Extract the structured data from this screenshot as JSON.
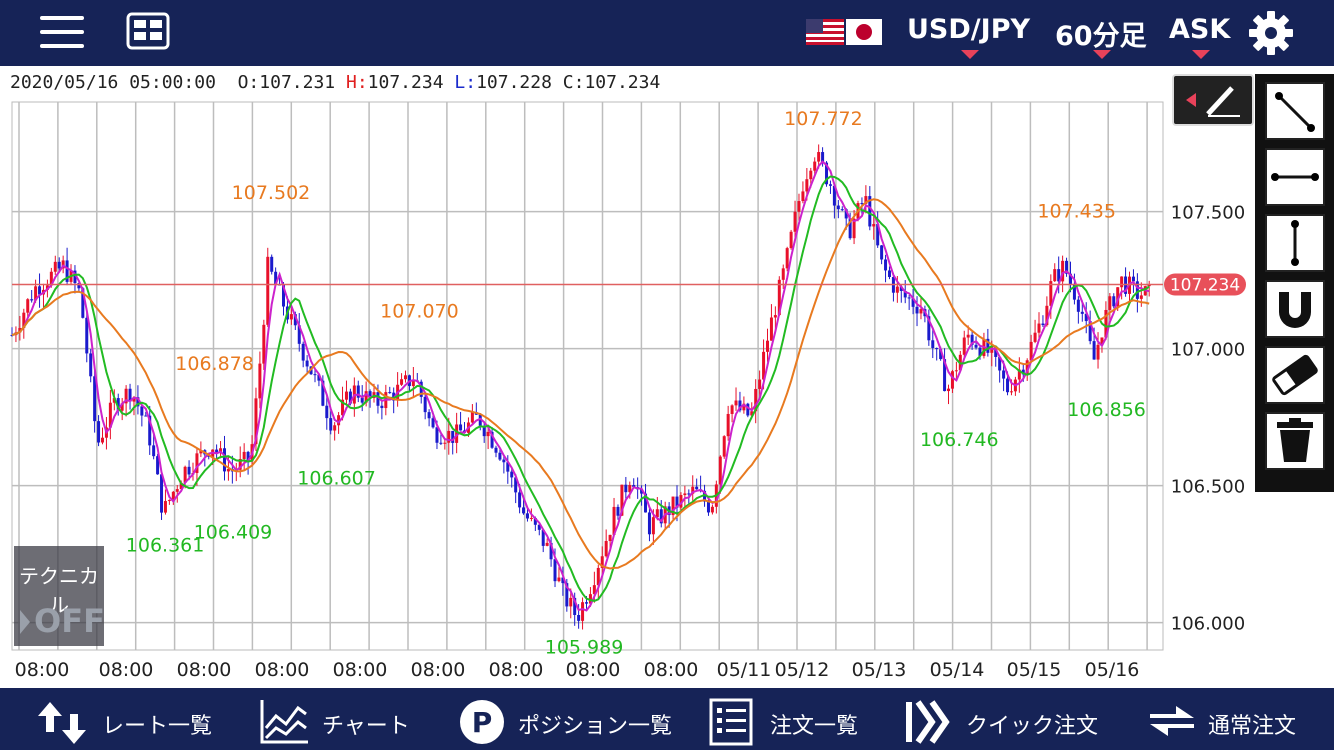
{
  "header": {
    "pair": "USD/JPY",
    "timeframe": "60分足",
    "side": "ASK",
    "flags": [
      "us-flag-icon",
      "jp-flag-icon"
    ]
  },
  "ohlc": {
    "datetime": "2020/05/16 05:00:00",
    "o_label": "O:",
    "o": "107.231",
    "h_label": "H:",
    "h": "107.234",
    "l_label": "L:",
    "l": "107.228",
    "c_label": "C:",
    "c": "107.234"
  },
  "technical": {
    "label": "テクニカル",
    "state": "OFF"
  },
  "chart_data": {
    "type": "candlestick",
    "ylim": [
      105.9,
      107.9
    ],
    "yticks": [
      "107.500",
      "107.000",
      "106.500",
      "106.000"
    ],
    "current_price": "107.234",
    "xticks": [
      "08:00",
      "08:00",
      "08:00",
      "08:00",
      "08:00",
      "08:00",
      "08:00",
      "08:00",
      "08:00",
      "05/11",
      "05/12",
      "05/13",
      "05/14",
      "05/15",
      "05/16"
    ],
    "annotations": [
      {
        "text": "107.502",
        "kind": "high",
        "value": 107.502,
        "at": 0.225
      },
      {
        "text": "106.878",
        "kind": "high",
        "value": 106.878,
        "at": 0.176
      },
      {
        "text": "107.070",
        "kind": "high",
        "value": 107.07,
        "at": 0.354
      },
      {
        "text": "107.772",
        "kind": "high",
        "value": 107.772,
        "at": 0.705
      },
      {
        "text": "107.435",
        "kind": "high",
        "value": 107.435,
        "at": 0.925
      },
      {
        "text": "106.361",
        "kind": "low",
        "value": 106.361,
        "at": 0.133
      },
      {
        "text": "106.409",
        "kind": "low",
        "value": 106.409,
        "at": 0.192
      },
      {
        "text": "106.607",
        "kind": "low",
        "value": 106.607,
        "at": 0.282
      },
      {
        "text": "105.989",
        "kind": "low",
        "value": 105.989,
        "at": 0.497
      },
      {
        "text": "106.746",
        "kind": "low",
        "value": 106.746,
        "at": 0.823
      },
      {
        "text": "106.856",
        "kind": "low",
        "value": 106.856,
        "at": 0.951
      }
    ],
    "path_keys": [
      [
        0,
        107.05
      ],
      [
        0.02,
        107.22
      ],
      [
        0.045,
        107.3
      ],
      [
        0.06,
        107.2
      ],
      [
        0.075,
        106.65
      ],
      [
        0.09,
        106.8
      ],
      [
        0.105,
        106.85
      ],
      [
        0.12,
        106.7
      ],
      [
        0.133,
        106.4
      ],
      [
        0.15,
        106.55
      ],
      [
        0.176,
        106.65
      ],
      [
        0.192,
        106.55
      ],
      [
        0.21,
        106.6
      ],
      [
        0.218,
        106.95
      ],
      [
        0.225,
        107.3
      ],
      [
        0.24,
        107.15
      ],
      [
        0.255,
        107.0
      ],
      [
        0.27,
        106.85
      ],
      [
        0.282,
        106.72
      ],
      [
        0.3,
        106.85
      ],
      [
        0.32,
        106.8
      ],
      [
        0.34,
        106.85
      ],
      [
        0.354,
        106.9
      ],
      [
        0.37,
        106.7
      ],
      [
        0.39,
        106.68
      ],
      [
        0.41,
        106.75
      ],
      [
        0.43,
        106.62
      ],
      [
        0.45,
        106.4
      ],
      [
        0.47,
        106.28
      ],
      [
        0.485,
        106.1
      ],
      [
        0.497,
        106.02
      ],
      [
        0.51,
        106.15
      ],
      [
        0.53,
        106.4
      ],
      [
        0.545,
        106.55
      ],
      [
        0.56,
        106.35
      ],
      [
        0.58,
        106.42
      ],
      [
        0.6,
        106.48
      ],
      [
        0.615,
        106.42
      ],
      [
        0.63,
        106.8
      ],
      [
        0.65,
        106.75
      ],
      [
        0.665,
        107.05
      ],
      [
        0.68,
        107.3
      ],
      [
        0.695,
        107.6
      ],
      [
        0.705,
        107.72
      ],
      [
        0.72,
        107.6
      ],
      [
        0.735,
        107.42
      ],
      [
        0.75,
        107.55
      ],
      [
        0.765,
        107.3
      ],
      [
        0.78,
        107.2
      ],
      [
        0.8,
        107.15
      ],
      [
        0.81,
        107.0
      ],
      [
        0.823,
        106.85
      ],
      [
        0.84,
        107.05
      ],
      [
        0.86,
        106.98
      ],
      [
        0.875,
        106.85
      ],
      [
        0.89,
        106.95
      ],
      [
        0.905,
        107.1
      ],
      [
        0.915,
        107.25
      ],
      [
        0.925,
        107.3
      ],
      [
        0.94,
        107.15
      ],
      [
        0.951,
        106.95
      ],
      [
        0.96,
        107.1
      ],
      [
        0.975,
        107.25
      ],
      [
        0.99,
        107.2
      ]
    ]
  },
  "footer": {
    "items": [
      {
        "label": "レート一覧",
        "icon": "rate-list-icon"
      },
      {
        "label": "チャート",
        "icon": "chart-icon"
      },
      {
        "label": "ポジション一覧",
        "icon": "position-icon"
      },
      {
        "label": "注文一覧",
        "icon": "order-list-icon"
      },
      {
        "label": "クイック注文",
        "icon": "quick-order-icon"
      },
      {
        "label": "通常注文",
        "icon": "normal-order-icon"
      }
    ]
  },
  "colors": {
    "header_bg": "#162357",
    "up": "#e8102a",
    "down": "#1a1acc",
    "ma_short": "#cc22cc",
    "ma_mid": "#22bb22",
    "ma_long": "#e87a20",
    "high_label": "#e87a20",
    "low_label": "#22b822",
    "price_badge": "#e8505a"
  }
}
